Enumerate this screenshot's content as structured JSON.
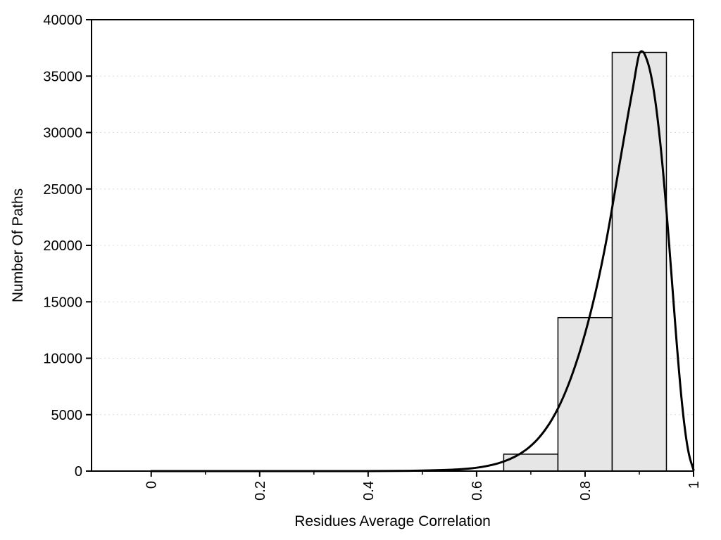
{
  "chart_data": {
    "type": "bar",
    "subtype": "histogram-with-density-curve",
    "title": "",
    "xlabel": "Residues Average Correlation",
    "ylabel": "Number Of Paths",
    "xlim": [
      -0.11,
      1.0
    ],
    "ylim": [
      0,
      40000
    ],
    "grid": "horizontal-dotted",
    "legend": "none",
    "xticks": [
      0,
      0.2,
      0.4,
      0.6,
      0.8,
      1
    ],
    "xtick_labels": [
      "0",
      "0.2",
      "0.4",
      "0.6",
      "0.8",
      "1"
    ],
    "xticks_minor": [
      0.1,
      0.3,
      0.5,
      0.7,
      0.9
    ],
    "yticks": [
      0,
      5000,
      10000,
      15000,
      20000,
      25000,
      30000,
      35000,
      40000
    ],
    "ytick_labels": [
      "0",
      "5000",
      "10000",
      "15000",
      "20000",
      "25000",
      "30000",
      "35000",
      "40000"
    ],
    "bars": [
      {
        "x0": 0.65,
        "x1": 0.75,
        "value": 1500
      },
      {
        "x0": 0.75,
        "x1": 0.85,
        "value": 13600
      },
      {
        "x0": 0.85,
        "x1": 0.95,
        "value": 37100
      }
    ],
    "curve": [
      [
        0.0,
        0
      ],
      [
        0.05,
        0
      ],
      [
        0.1,
        0
      ],
      [
        0.15,
        0
      ],
      [
        0.2,
        0
      ],
      [
        0.25,
        0
      ],
      [
        0.3,
        0
      ],
      [
        0.35,
        0
      ],
      [
        0.4,
        0
      ],
      [
        0.45,
        10
      ],
      [
        0.5,
        40
      ],
      [
        0.55,
        110
      ],
      [
        0.58,
        190
      ],
      [
        0.6,
        290
      ],
      [
        0.62,
        450
      ],
      [
        0.64,
        680
      ],
      [
        0.66,
        1020
      ],
      [
        0.68,
        1500
      ],
      [
        0.7,
        2200
      ],
      [
        0.72,
        3200
      ],
      [
        0.74,
        4600
      ],
      [
        0.76,
        6500
      ],
      [
        0.78,
        9000
      ],
      [
        0.8,
        12100
      ],
      [
        0.82,
        15900
      ],
      [
        0.84,
        20500
      ],
      [
        0.86,
        26200
      ],
      [
        0.87,
        29000
      ],
      [
        0.88,
        31800
      ],
      [
        0.89,
        34400
      ],
      [
        0.895,
        35900
      ],
      [
        0.9,
        37100
      ],
      [
        0.905,
        37250
      ],
      [
        0.91,
        37000
      ],
      [
        0.92,
        35600
      ],
      [
        0.93,
        32800
      ],
      [
        0.94,
        28600
      ],
      [
        0.95,
        23200
      ],
      [
        0.96,
        17000
      ],
      [
        0.97,
        10600
      ],
      [
        0.98,
        5200
      ],
      [
        0.99,
        1600
      ],
      [
        1.0,
        100
      ]
    ],
    "colors": {
      "bar_fill": "#e6e6e6",
      "bar_stroke": "#000000",
      "curve": "#000000",
      "axis": "#000000",
      "grid": "#dcdcdc",
      "background": "#ffffff"
    }
  }
}
